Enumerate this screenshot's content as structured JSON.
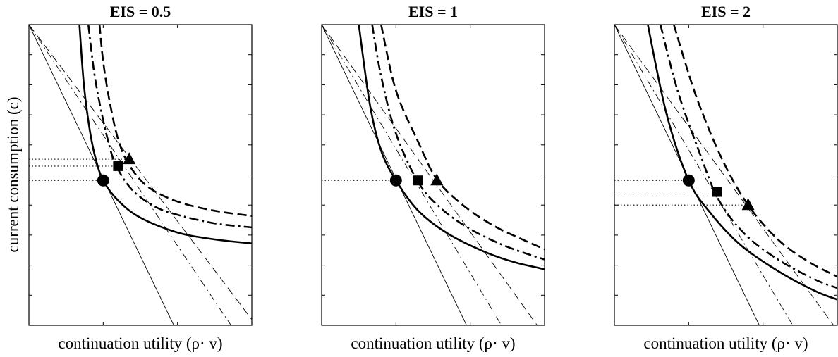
{
  "figure": {
    "ylabel": "current consumption (c)"
  },
  "chart_data": [
    {
      "type": "line",
      "title": "EIS = 0.5",
      "xlabel": "continuation utility (ρ· v)",
      "ylabel": "current consumption (c)",
      "xlim": [
        0,
        3
      ],
      "ylim": [
        0,
        5.25
      ],
      "grid": false,
      "ticks_labeled": false,
      "indifference_curves": [
        {
          "style": "solid-thick",
          "points": [
            [
              0.68,
              5.25
            ],
            [
              0.74,
              4.2
            ],
            [
              0.82,
              3.4
            ],
            [
              0.9,
              2.9
            ],
            [
              1.0,
              2.53
            ],
            [
              1.2,
              2.18
            ],
            [
              1.5,
              1.88
            ],
            [
              2.0,
              1.62
            ],
            [
              2.5,
              1.5
            ],
            [
              3.0,
              1.43
            ]
          ]
        },
        {
          "style": "dashdot-thick",
          "points": [
            [
              0.8,
              5.25
            ],
            [
              0.88,
              4.4
            ],
            [
              0.98,
              3.7
            ],
            [
              1.1,
              3.05
            ],
            [
              1.2,
              2.72
            ],
            [
              1.4,
              2.35
            ],
            [
              1.7,
              2.07
            ],
            [
              2.0,
              1.93
            ],
            [
              2.5,
              1.78
            ],
            [
              3.0,
              1.71
            ]
          ]
        },
        {
          "style": "dashed-thick",
          "points": [
            [
              0.95,
              5.25
            ],
            [
              1.0,
              4.6
            ],
            [
              1.08,
              3.95
            ],
            [
              1.2,
              3.25
            ],
            [
              1.35,
              2.8
            ],
            [
              1.6,
              2.42
            ],
            [
              2.0,
              2.16
            ],
            [
              2.5,
              2.0
            ],
            [
              3.0,
              1.91
            ]
          ]
        }
      ],
      "budget_lines": [
        {
          "style": "solid-thin",
          "points": [
            [
              0,
              5.25
            ],
            [
              1.95,
              0
            ]
          ]
        },
        {
          "style": "dashdot-thin",
          "points": [
            [
              0,
              5.25
            ],
            [
              2.72,
              0
            ]
          ]
        },
        {
          "style": "dashed-thin",
          "points": [
            [
              0,
              5.25
            ],
            [
              3.0,
              0.1
            ]
          ]
        }
      ],
      "guides": [
        {
          "style": "dotted",
          "y": 2.53,
          "x_to": 1.0
        },
        {
          "style": "dotted",
          "y": 2.78,
          "x_to": 1.2
        },
        {
          "style": "dotted",
          "y": 2.9,
          "x_to": 1.35
        }
      ],
      "optima": [
        {
          "marker": "circle",
          "x": 1.0,
          "y": 2.53
        },
        {
          "marker": "square",
          "x": 1.2,
          "y": 2.78
        },
        {
          "marker": "triangle",
          "x": 1.35,
          "y": 2.9
        }
      ]
    },
    {
      "type": "line",
      "title": "EIS = 1",
      "xlabel": "continuation utility (ρ· v)",
      "ylabel": "",
      "xlim": [
        0,
        3
      ],
      "ylim": [
        0,
        5.25
      ],
      "grid": false,
      "ticks_labeled": false,
      "indifference_curves": [
        {
          "style": "solid-thick",
          "points": [
            [
              0.5,
              5.25
            ],
            [
              0.65,
              3.85
            ],
            [
              0.8,
              3.05
            ],
            [
              1.0,
              2.53
            ],
            [
              1.3,
              2.0
            ],
            [
              1.7,
              1.6
            ],
            [
              2.2,
              1.28
            ],
            [
              2.6,
              1.1
            ],
            [
              3.0,
              0.98
            ]
          ]
        },
        {
          "style": "dashdot-thick",
          "points": [
            [
              0.68,
              5.25
            ],
            [
              0.8,
              4.35
            ],
            [
              1.0,
              3.35
            ],
            [
              1.3,
              2.5
            ],
            [
              1.6,
              2.05
            ],
            [
              2.0,
              1.68
            ],
            [
              2.5,
              1.37
            ],
            [
              3.0,
              1.15
            ]
          ]
        },
        {
          "style": "dashed-thick",
          "points": [
            [
              0.8,
              5.25
            ],
            [
              1.0,
              4.1
            ],
            [
              1.3,
              3.2
            ],
            [
              1.55,
              2.55
            ],
            [
              1.9,
              2.1
            ],
            [
              2.3,
              1.75
            ],
            [
              2.7,
              1.5
            ],
            [
              3.0,
              1.33
            ]
          ]
        }
      ],
      "budget_lines": [
        {
          "style": "solid-thin",
          "points": [
            [
              0,
              5.25
            ],
            [
              1.95,
              0
            ]
          ]
        },
        {
          "style": "dashdot-thin",
          "points": [
            [
              0,
              5.25
            ],
            [
              2.42,
              0
            ]
          ]
        },
        {
          "style": "dashed-thin",
          "points": [
            [
              0,
              5.25
            ],
            [
              2.9,
              0
            ]
          ]
        }
      ],
      "guides": [
        {
          "style": "dotted",
          "y": 2.53,
          "x_to": 1.0
        }
      ],
      "optima": [
        {
          "marker": "circle",
          "x": 1.0,
          "y": 2.53
        },
        {
          "marker": "square",
          "x": 1.3,
          "y": 2.53
        },
        {
          "marker": "triangle",
          "x": 1.55,
          "y": 2.53
        }
      ]
    },
    {
      "type": "line",
      "title": "EIS = 2",
      "xlabel": "continuation utility (ρ· v)",
      "ylabel": "",
      "xlim": [
        0,
        3
      ],
      "ylim": [
        0,
        5.25
      ],
      "grid": false,
      "ticks_labeled": false,
      "indifference_curves": [
        {
          "style": "solid-thick",
          "points": [
            [
              0.45,
              5.25
            ],
            [
              0.7,
              3.7
            ],
            [
              1.0,
              2.53
            ],
            [
              1.3,
              1.95
            ],
            [
              1.7,
              1.4
            ],
            [
              2.2,
              0.95
            ],
            [
              2.7,
              0.6
            ],
            [
              3.0,
              0.45
            ]
          ]
        },
        {
          "style": "dashdot-thick",
          "points": [
            [
              0.62,
              5.25
            ],
            [
              0.85,
              4.1
            ],
            [
              1.15,
              3.0
            ],
            [
              1.4,
              2.2
            ],
            [
              1.75,
              1.6
            ],
            [
              2.2,
              1.15
            ],
            [
              2.7,
              0.8
            ],
            [
              3.0,
              0.65
            ]
          ]
        },
        {
          "style": "dashed-thick",
          "points": [
            [
              0.8,
              5.25
            ],
            [
              1.1,
              4.0
            ],
            [
              1.45,
              2.9
            ],
            [
              1.8,
              2.1
            ],
            [
              2.2,
              1.5
            ],
            [
              2.6,
              1.12
            ],
            [
              3.0,
              0.85
            ]
          ]
        }
      ],
      "budget_lines": [
        {
          "style": "solid-thin",
          "points": [
            [
              0,
              5.25
            ],
            [
              1.95,
              0
            ]
          ]
        },
        {
          "style": "dashdot-thin",
          "points": [
            [
              0,
              5.25
            ],
            [
              2.4,
              0
            ]
          ]
        },
        {
          "style": "dashed-thin",
          "points": [
            [
              0,
              5.25
            ],
            [
              2.95,
              0
            ]
          ]
        }
      ],
      "guides": [
        {
          "style": "dotted",
          "y": 2.53,
          "x_to": 1.0
        },
        {
          "style": "dotted",
          "y": 2.33,
          "x_to": 1.38
        },
        {
          "style": "dotted",
          "y": 2.1,
          "x_to": 1.8
        }
      ],
      "optima": [
        {
          "marker": "circle",
          "x": 1.0,
          "y": 2.53
        },
        {
          "marker": "square",
          "x": 1.38,
          "y": 2.33
        },
        {
          "marker": "triangle",
          "x": 1.8,
          "y": 2.1
        }
      ]
    }
  ]
}
